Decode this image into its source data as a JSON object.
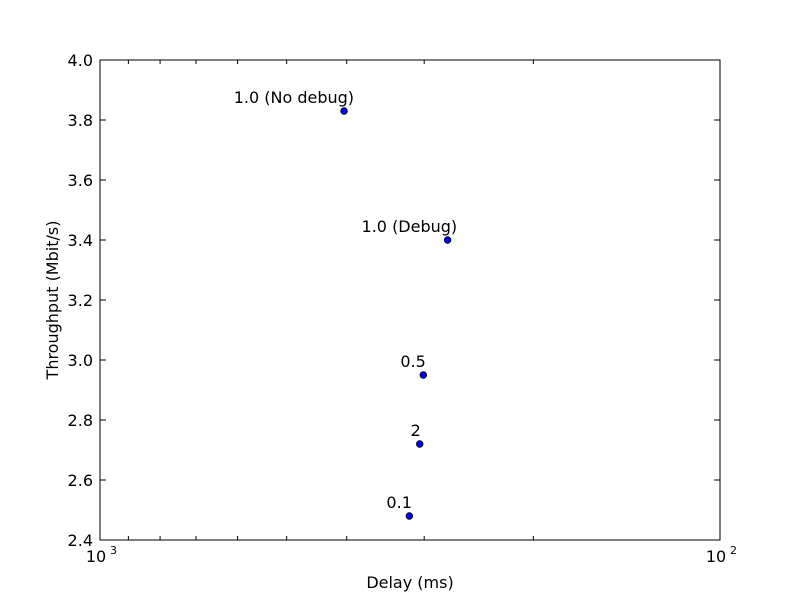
{
  "chart_data": {
    "type": "scatter",
    "title": "",
    "xlabel": "Delay (ms)",
    "ylabel": "Throughput (Mbit/s)",
    "x_scale": "log",
    "x_direction": "inverted",
    "xlim": [
      1000,
      100
    ],
    "ylim": [
      2.4,
      4.0
    ],
    "x_ticks": [
      {
        "value": 1000,
        "base": "10",
        "exp": "3"
      },
      {
        "value": 100,
        "base": "10",
        "exp": "2"
      }
    ],
    "y_ticks": [
      2.4,
      2.6,
      2.8,
      3.0,
      3.2,
      3.4,
      3.6,
      3.8,
      4.0
    ],
    "y_tick_labels": [
      "2.4",
      "2.6",
      "2.8",
      "3.0",
      "3.2",
      "3.4",
      "3.6",
      "3.8",
      "4.0"
    ],
    "grid": false,
    "marker_color": "#0000ff",
    "points": [
      {
        "label": "1.0 (No debug)",
        "x": 404,
        "y": 3.83
      },
      {
        "label": "1.0 (Debug)",
        "x": 275,
        "y": 3.4
      },
      {
        "label": "0.5",
        "x": 301,
        "y": 2.95
      },
      {
        "label": "2",
        "x": 305,
        "y": 2.72
      },
      {
        "label": "0.1",
        "x": 317,
        "y": 2.48
      }
    ]
  }
}
